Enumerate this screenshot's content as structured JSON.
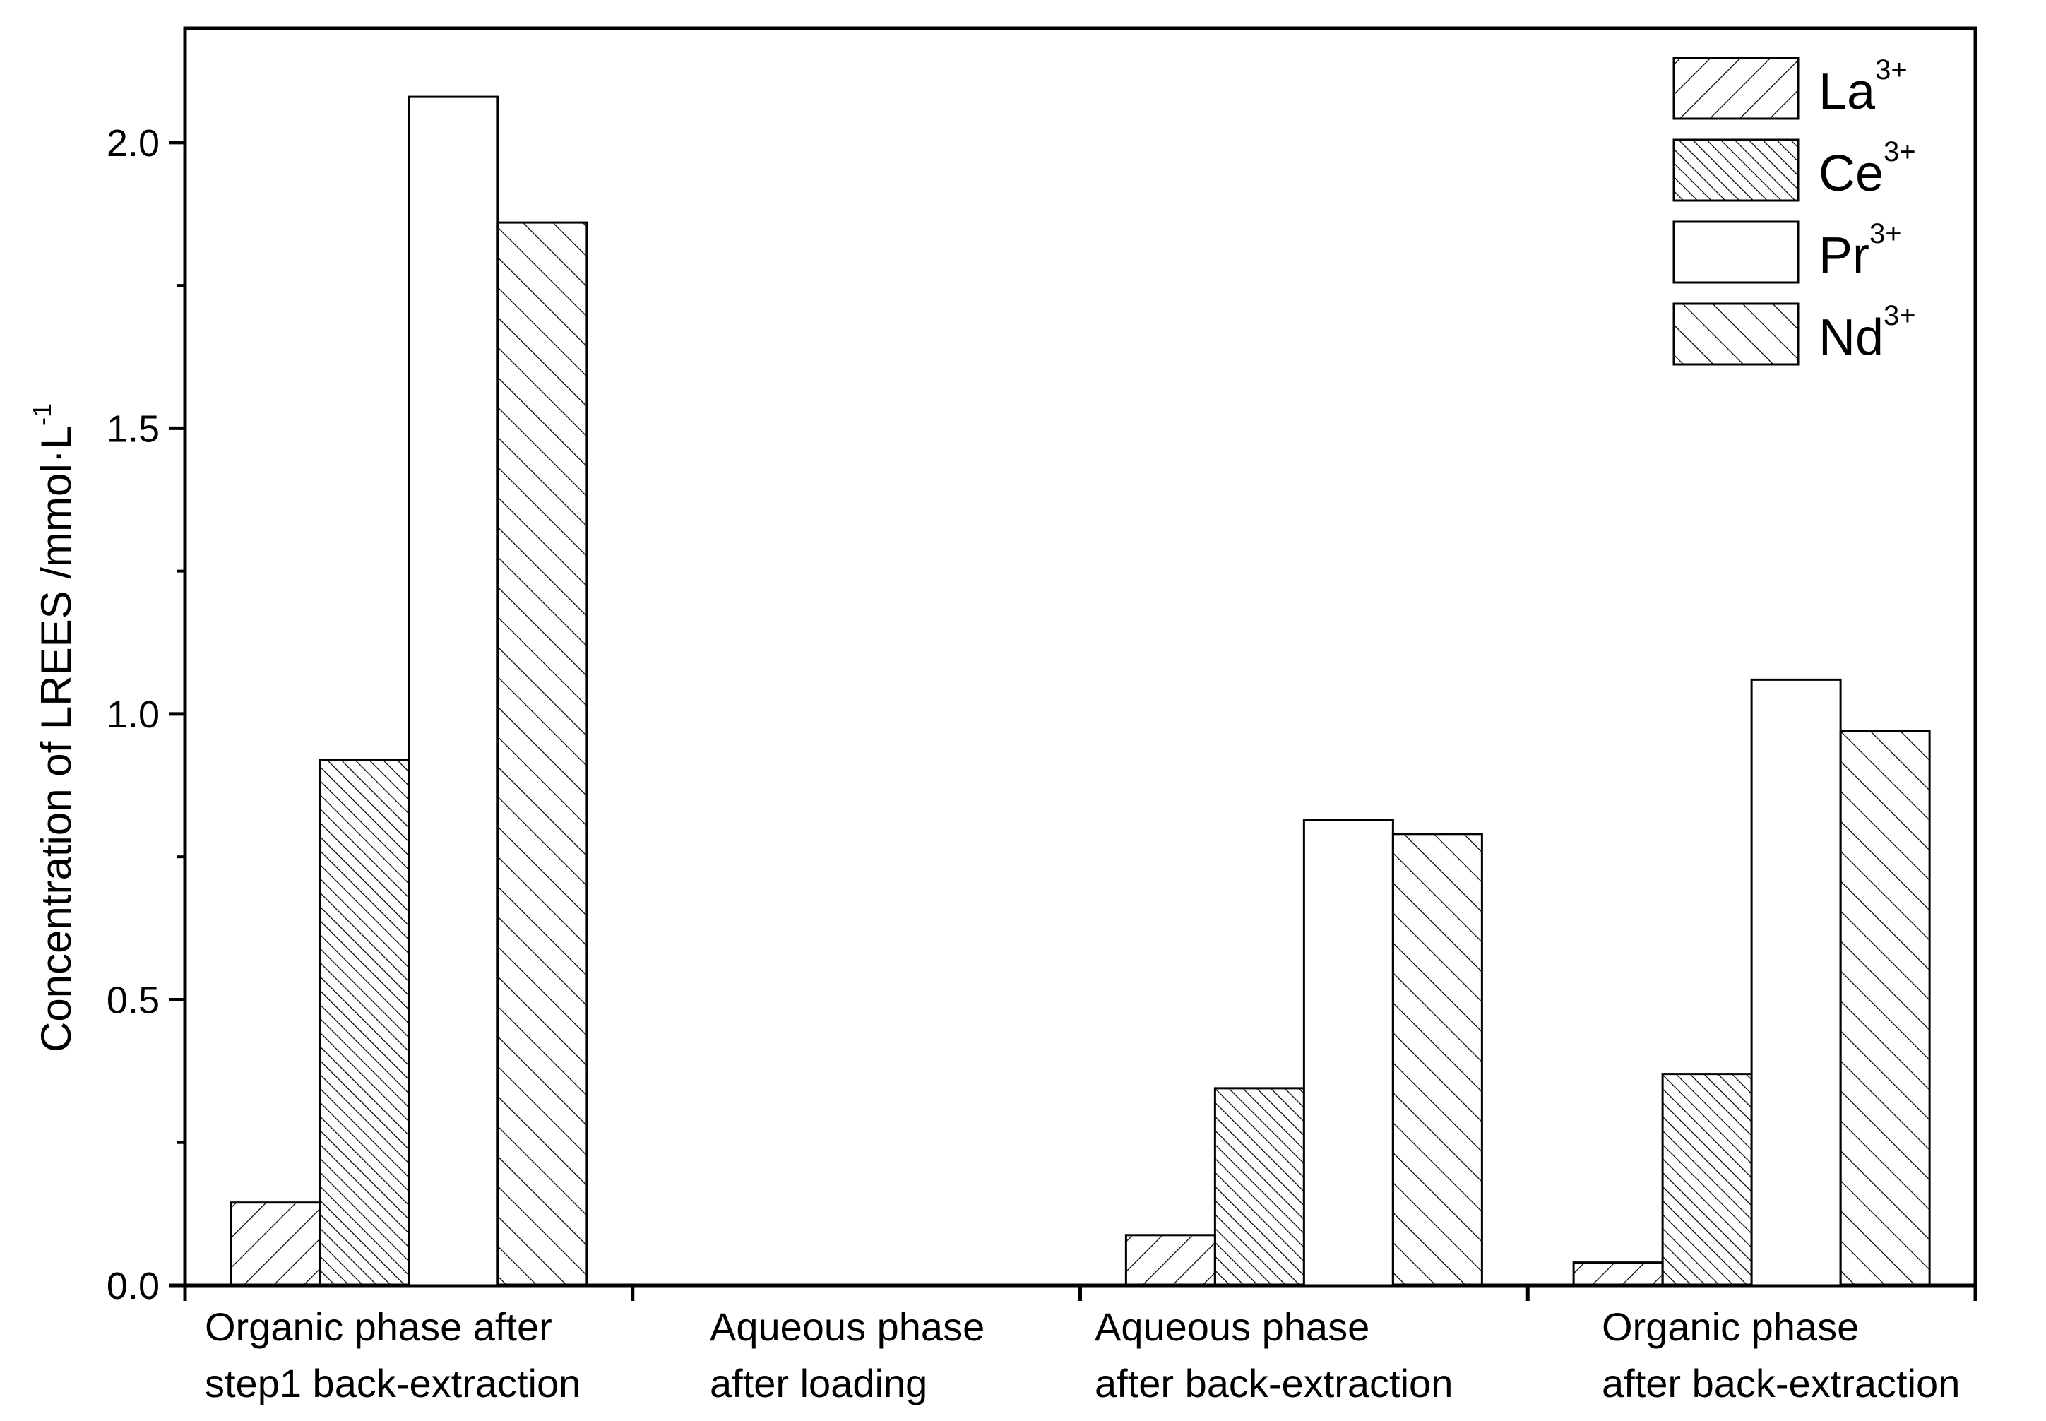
{
  "chart_data": {
    "type": "bar",
    "title": "",
    "xlabel": "",
    "ylabel": "Concentration of LREES /mmol·L",
    "ylabel_sup": "-1",
    "ylim": [
      0,
      2.2
    ],
    "yticks": [
      "0.0",
      "0.5",
      "1.0",
      "1.5",
      "2.0"
    ],
    "grid": false,
    "legend_position": "top-right",
    "categories": [
      [
        "Organic phase after",
        "step1 back-extraction"
      ],
      [
        "Aqueous phase",
        "after loading"
      ],
      [
        "Aqueous phase",
        "after back-extraction"
      ],
      [
        "Organic phase",
        "after back-extraction"
      ]
    ],
    "series": [
      {
        "name": "La",
        "sup": "3+",
        "pattern": "hatch-forward",
        "values": [
          0.145,
          0,
          0.088,
          0.04
        ]
      },
      {
        "name": "Ce",
        "sup": "3+",
        "pattern": "hatch-back-dense",
        "values": [
          0.92,
          0,
          0.345,
          0.37
        ]
      },
      {
        "name": "Pr",
        "sup": "3+",
        "pattern": "none",
        "values": [
          2.08,
          0,
          0.815,
          1.06
        ]
      },
      {
        "name": "Nd",
        "sup": "3+",
        "pattern": "hatch-back",
        "values": [
          1.86,
          0,
          0.79,
          0.97
        ]
      }
    ]
  }
}
